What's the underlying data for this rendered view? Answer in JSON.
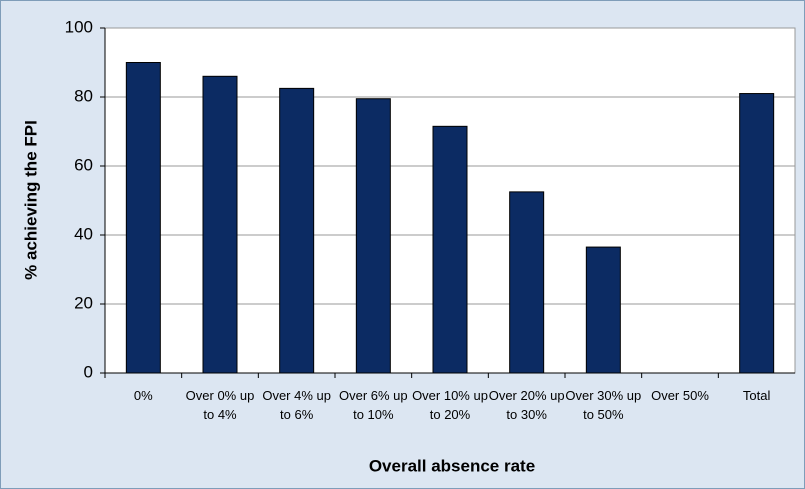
{
  "chart_data": {
    "type": "bar",
    "x_label": "Overall absence rate",
    "y_label": "% achieving the FPI",
    "categories": [
      "0%",
      "Over 0% up to 4%",
      "Over 4% up to 6%",
      "Over 6% up to 10%",
      "Over 10% up to 20%",
      "Over 20% up to 30%",
      "Over 30% up to 50%",
      "Over 50%",
      "Total"
    ],
    "values": [
      90,
      86,
      82.5,
      79.5,
      71.5,
      52.5,
      36.5,
      null,
      81
    ],
    "color": "#0c2b63",
    "ylim": [
      0,
      100
    ],
    "yticks": [
      0,
      20,
      40,
      60,
      80,
      100
    ],
    "grid": true
  }
}
